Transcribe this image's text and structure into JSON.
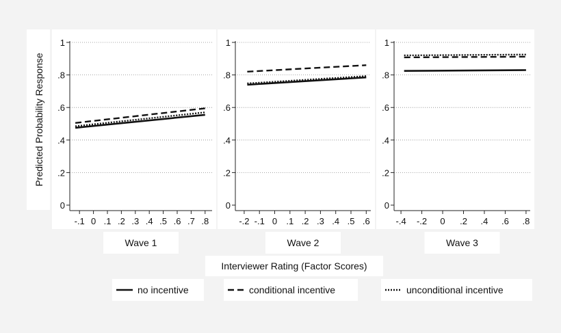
{
  "chart_data": {
    "type": "line",
    "ylabel": "Predicted Probability Response",
    "xlabel": "Interviewer Rating (Factor Scores)",
    "yticks": [
      "0",
      ".2",
      ".4",
      ".6",
      ".8",
      "1"
    ],
    "ylim": [
      0,
      1
    ],
    "grid": true,
    "legend_position": "bottom",
    "legend": [
      {
        "label": "no incentive",
        "style": "solid"
      },
      {
        "label": "conditional incentive",
        "style": "dashed"
      },
      {
        "label": "unconditional incentive",
        "style": "dotted"
      }
    ],
    "panels": [
      {
        "title": "Wave 1",
        "xticks": [
          "-.1",
          "0",
          ".1",
          ".2",
          ".3",
          ".4",
          ".5",
          ".6",
          ".7",
          ".8"
        ],
        "xlim": [
          -0.15,
          0.85
        ],
        "x": [
          -0.13,
          0.8
        ],
        "series": [
          {
            "name": "no incentive",
            "style": "solid",
            "values": [
              0.475,
              0.555
            ]
          },
          {
            "name": "conditional incentive",
            "style": "dashed",
            "values": [
              0.505,
              0.595
            ]
          },
          {
            "name": "unconditional incentive",
            "style": "dotted",
            "values": [
              0.485,
              0.57
            ]
          }
        ]
      },
      {
        "title": "Wave 2",
        "xticks": [
          "-.2",
          "-.1",
          "0",
          ".1",
          ".2",
          ".3",
          ".4",
          ".5",
          ".6"
        ],
        "xlim": [
          -0.24,
          0.63
        ],
        "x": [
          -0.18,
          0.6
        ],
        "series": [
          {
            "name": "no incentive",
            "style": "solid",
            "values": [
              0.74,
              0.785
            ]
          },
          {
            "name": "conditional incentive",
            "style": "dashed",
            "values": [
              0.82,
              0.86
            ]
          },
          {
            "name": "unconditional incentive",
            "style": "dotted",
            "values": [
              0.748,
              0.793
            ]
          }
        ]
      },
      {
        "title": "Wave 3",
        "xticks": [
          "-.4",
          "-.2",
          "0",
          ".2",
          ".4",
          ".6",
          ".8"
        ],
        "xlim": [
          -0.44,
          0.84
        ],
        "x": [
          -0.37,
          0.8
        ],
        "series": [
          {
            "name": "no incentive",
            "style": "solid",
            "values": [
              0.825,
              0.83
            ]
          },
          {
            "name": "conditional incentive",
            "style": "dashed",
            "values": [
              0.908,
              0.912
            ]
          },
          {
            "name": "unconditional incentive",
            "style": "dotted",
            "values": [
              0.92,
              0.925
            ]
          }
        ]
      }
    ]
  }
}
